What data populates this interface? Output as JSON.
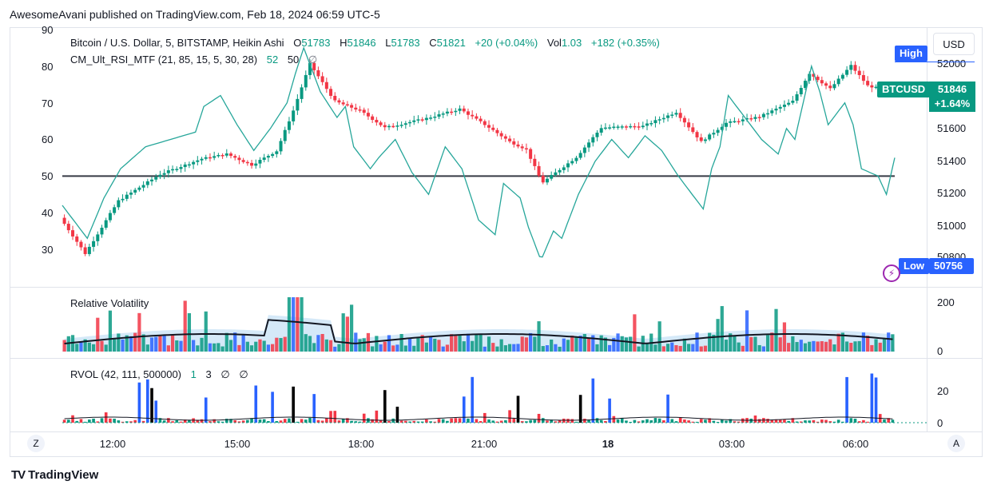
{
  "publisher_line": "AwesomeAvani published on TradingView.com, Feb 18, 2024 06:59 UTC-5",
  "brand": "TradingView",
  "brand_logo": "TV",
  "currency_button": "USD",
  "main_legend": {
    "symbol": "Bitcoin / U.S. Dollar, 5, BITSTAMP, Heikin Ashi",
    "o_label": "O",
    "o_value": "51783",
    "h_label": "H",
    "h_value": "51846",
    "l_label": "L",
    "l_value": "51783",
    "c_label": "C",
    "c_value": "51821",
    "change": "+20 (+0.04%)",
    "vol_label": "Vol",
    "vol_value": "1.03",
    "vol_change": "+182 (+0.35%)"
  },
  "rsi_legend": {
    "name": "CM_Ult_RSI_MTF (21, 85, 15, 5, 30, 28)",
    "v1": "52",
    "v2": "50",
    "v3": "∅"
  },
  "rsi_axis_labels": [
    "90",
    "80",
    "70",
    "60",
    "50",
    "40",
    "30"
  ],
  "price_axis_labels": [
    "52000",
    "51600",
    "51400",
    "51200",
    "51000",
    "50800"
  ],
  "price_tags": {
    "high_label": "High",
    "symbol_tag": "BTCUSD",
    "last_price": "51846",
    "last_change": "+1.64%",
    "low_label": "Low",
    "low_value": "50756"
  },
  "volatility_legend": "Relative Volatility",
  "volatility_axis": [
    "200",
    "0"
  ],
  "rvol_legend": {
    "name": "RVOL (42, 111, 500000)",
    "v1": "1",
    "v2": "3",
    "v3": "∅",
    "v4": "∅"
  },
  "rvol_axis": [
    "20",
    "0"
  ],
  "time_axis": [
    "12:00",
    "15:00",
    "18:00",
    "21:00",
    "18",
    "03:00",
    "06:00"
  ],
  "nav_left": "Z",
  "nav_right": "A",
  "colors": {
    "up": "#089981",
    "down": "#f23645",
    "blue": "#2962ff",
    "rsi_line": "#26a69a",
    "high_tag": "#2962ff",
    "low_tag": "#2962ff",
    "price_tag": "#089981",
    "volatility_fill": "#b3d7f2"
  },
  "chart_data": {
    "type": "candlestick",
    "candle_style": "Heikin Ashi",
    "x_range": [
      "10:30",
      "06:59"
    ],
    "price_ylim": [
      50756,
      52000
    ],
    "rsi_ylim": [
      25,
      90
    ],
    "rsi_threshold": 50,
    "price_path": [
      [
        0,
        51010
      ],
      [
        0.03,
        50780
      ],
      [
        0.07,
        51120
      ],
      [
        0.12,
        51290
      ],
      [
        0.17,
        51390
      ],
      [
        0.2,
        51420
      ],
      [
        0.23,
        51350
      ],
      [
        0.26,
        51440
      ],
      [
        0.28,
        51700
      ],
      [
        0.29,
        51850
      ],
      [
        0.3,
        52000
      ],
      [
        0.33,
        51760
      ],
      [
        0.36,
        51700
      ],
      [
        0.39,
        51590
      ],
      [
        0.44,
        51650
      ],
      [
        0.48,
        51710
      ],
      [
        0.51,
        51610
      ],
      [
        0.54,
        51500
      ],
      [
        0.56,
        51450
      ],
      [
        0.575,
        51280
      ],
      [
        0.58,
        51240
      ],
      [
        0.62,
        51400
      ],
      [
        0.65,
        51590
      ],
      [
        0.7,
        51600
      ],
      [
        0.74,
        51690
      ],
      [
        0.77,
        51500
      ],
      [
        0.8,
        51620
      ],
      [
        0.84,
        51660
      ],
      [
        0.88,
        51760
      ],
      [
        0.9,
        51940
      ],
      [
        0.925,
        51840
      ],
      [
        0.95,
        51990
      ],
      [
        0.97,
        51860
      ],
      [
        1.0,
        51821
      ]
    ],
    "rsi_path": [
      [
        0,
        42
      ],
      [
        0.03,
        33
      ],
      [
        0.05,
        44
      ],
      [
        0.07,
        52
      ],
      [
        0.1,
        58
      ],
      [
        0.13,
        60
      ],
      [
        0.16,
        62
      ],
      [
        0.17,
        69
      ],
      [
        0.19,
        72
      ],
      [
        0.21,
        64
      ],
      [
        0.23,
        57
      ],
      [
        0.25,
        63
      ],
      [
        0.27,
        70
      ],
      [
        0.28,
        78
      ],
      [
        0.29,
        85
      ],
      [
        0.31,
        73
      ],
      [
        0.33,
        66
      ],
      [
        0.34,
        69
      ],
      [
        0.35,
        58
      ],
      [
        0.37,
        52
      ],
      [
        0.38,
        55
      ],
      [
        0.4,
        60
      ],
      [
        0.42,
        51
      ],
      [
        0.44,
        45
      ],
      [
        0.46,
        58
      ],
      [
        0.48,
        52
      ],
      [
        0.5,
        38
      ],
      [
        0.52,
        34
      ],
      [
        0.53,
        48
      ],
      [
        0.55,
        44
      ],
      [
        0.56,
        36
      ],
      [
        0.575,
        27
      ],
      [
        0.59,
        35
      ],
      [
        0.6,
        33
      ],
      [
        0.62,
        45
      ],
      [
        0.64,
        54
      ],
      [
        0.66,
        60
      ],
      [
        0.68,
        55
      ],
      [
        0.7,
        61
      ],
      [
        0.72,
        57
      ],
      [
        0.74,
        50
      ],
      [
        0.76,
        44
      ],
      [
        0.77,
        41
      ],
      [
        0.78,
        52
      ],
      [
        0.79,
        58
      ],
      [
        0.8,
        72
      ],
      [
        0.82,
        66
      ],
      [
        0.84,
        60
      ],
      [
        0.86,
        56
      ],
      [
        0.87,
        63
      ],
      [
        0.88,
        60
      ],
      [
        0.9,
        80
      ],
      [
        0.91,
        73
      ],
      [
        0.92,
        64
      ],
      [
        0.94,
        70
      ],
      [
        0.95,
        64
      ],
      [
        0.96,
        52
      ],
      [
        0.98,
        50
      ],
      [
        0.99,
        45
      ],
      [
        1.0,
        55
      ]
    ]
  }
}
